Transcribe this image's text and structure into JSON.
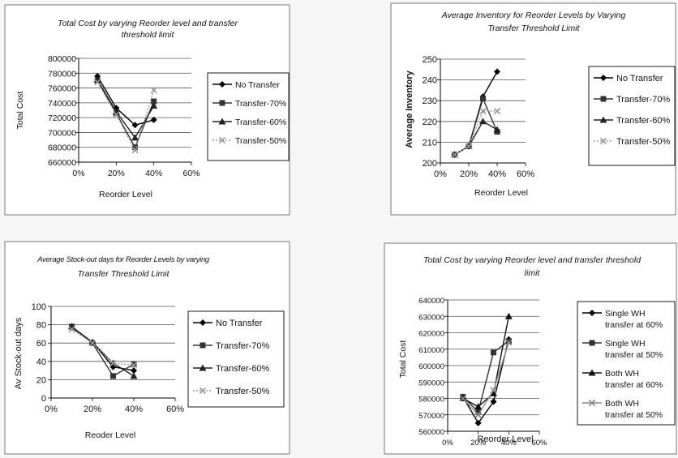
{
  "chart_data": [
    {
      "type": "line",
      "title": "Total Cost by varying Reorder level and transfer threshold limit",
      "title_lines": [
        "Total Cost by varying Reorder level and transfer",
        "threshold limit"
      ],
      "xlabel": "Reorder Level",
      "ylabel": "Total Cost",
      "xlim": [
        0,
        60
      ],
      "ylim": [
        660000,
        800000
      ],
      "x_ticks": [
        "0%",
        "20%",
        "40%",
        "60%"
      ],
      "y_ticks": [
        "660000",
        "680000",
        "700000",
        "720000",
        "740000",
        "760000",
        "780000",
        "800000"
      ],
      "grid": true,
      "legend_position": "right",
      "x": [
        10,
        20,
        30,
        40
      ],
      "series": [
        {
          "name": "No Transfer",
          "values": [
            776000,
            733000,
            710000,
            717000
          ],
          "marker": "diamond",
          "color": "#000000",
          "dash": ""
        },
        {
          "name": "Transfer-70%",
          "values": [
            770000,
            726000,
            680000,
            742000
          ],
          "marker": "square",
          "color": "#333333",
          "dash": ""
        },
        {
          "name": "Transfer-60%",
          "values": [
            771000,
            728000,
            693000,
            736000
          ],
          "marker": "triangle",
          "color": "#222222",
          "dash": ""
        },
        {
          "name": "Transfer-50%",
          "values": [
            768000,
            724000,
            676000,
            757000
          ],
          "marker": "x",
          "color": "#9a9a9a",
          "dash": "2,2"
        }
      ]
    },
    {
      "type": "line",
      "title": "Average Inventory for Reorder Levels by Varying Transfer Threshold Limit",
      "title_lines": [
        "Average Inventory for Reorder Levels by Varying",
        "Transfer Threshold Limit"
      ],
      "xlabel": "Reorder Level",
      "ylabel": "Average Inventory",
      "xlim": [
        0,
        60
      ],
      "ylim": [
        200,
        250
      ],
      "x_ticks": [
        "0%",
        "20%",
        "40%",
        "60%"
      ],
      "y_ticks": [
        "200",
        "210",
        "220",
        "230",
        "240",
        "250"
      ],
      "grid": true,
      "legend_position": "right",
      "x": [
        10,
        20,
        30,
        40
      ],
      "series": [
        {
          "name": "No Transfer",
          "values": [
            204,
            208,
            232,
            244
          ],
          "marker": "diamond",
          "color": "#000000",
          "dash": ""
        },
        {
          "name": "Transfer-70%",
          "values": [
            204,
            208,
            231,
            215
          ],
          "marker": "square",
          "color": "#333333",
          "dash": ""
        },
        {
          "name": "Transfer-60%",
          "values": [
            204,
            208,
            220,
            216
          ],
          "marker": "triangle",
          "color": "#222222",
          "dash": ""
        },
        {
          "name": "Transfer-50%",
          "values": [
            204,
            208,
            225,
            225
          ],
          "marker": "x",
          "color": "#9a9a9a",
          "dash": "2,2"
        }
      ]
    },
    {
      "type": "line",
      "title": "Average Stock-out days for Reorder Levels by varying Transfer Threshold Limit",
      "title_lines": [
        "Average Stock-out days for Reorder Levels by varying",
        "Transfer Threshold Limit"
      ],
      "xlabel": "Reoder Level",
      "ylabel": "Av Stock-out days",
      "xlim": [
        0,
        60
      ],
      "ylim": [
        0,
        100
      ],
      "x_ticks": [
        "0%",
        "20%",
        "40%",
        "60%"
      ],
      "y_ticks": [
        "0",
        "20",
        "40",
        "60",
        "80",
        "100"
      ],
      "grid": true,
      "legend_position": "right",
      "x": [
        10,
        20,
        30,
        40
      ],
      "series": [
        {
          "name": "No Transfer",
          "values": [
            77,
            61,
            34,
            30
          ],
          "marker": "diamond",
          "color": "#000000",
          "dash": ""
        },
        {
          "name": "Transfer-70%",
          "values": [
            78,
            60,
            24,
            37
          ],
          "marker": "square",
          "color": "#333333",
          "dash": ""
        },
        {
          "name": "Transfer-60%",
          "values": [
            78,
            61,
            38,
            24
          ],
          "marker": "triangle",
          "color": "#222222",
          "dash": ""
        },
        {
          "name": "Transfer-50%",
          "values": [
            75,
            60,
            38,
            36
          ],
          "marker": "x",
          "color": "#9a9a9a",
          "dash": "2,2"
        }
      ]
    },
    {
      "type": "line",
      "title": "Total Cost by varying Reorder level and transfer threshold limit",
      "title_lines": [
        "Total Cost by varying Reorder level and transfer threshold",
        "limit"
      ],
      "xlabel": "Reorder Level",
      "ylabel": "Total Cost",
      "xlim": [
        0,
        60
      ],
      "ylim": [
        560000,
        640000
      ],
      "x_ticks": [
        "0%",
        "20%",
        "40%",
        "60%"
      ],
      "y_ticks": [
        "560000",
        "570000",
        "580000",
        "590000",
        "600000",
        "610000",
        "620000",
        "630000",
        "640000"
      ],
      "grid": true,
      "legend_position": "right",
      "x": [
        10,
        20,
        30,
        40
      ],
      "series": [
        {
          "name": "Single WH transfer at 60%",
          "legend_lines": [
            "Single WH",
            "transfer at 60%"
          ],
          "values": [
            581000,
            565000,
            578000,
            616000
          ],
          "marker": "diamond",
          "color": "#000000",
          "dash": ""
        },
        {
          "name": "Single WH transfer at 50%",
          "legend_lines": [
            "Single WH",
            "transfer at 50%"
          ],
          "values": [
            581000,
            572000,
            608000,
            615000
          ],
          "marker": "square",
          "color": "#333333",
          "dash": ""
        },
        {
          "name": "Both WH transfer at 60%",
          "legend_lines": [
            "Both WH",
            "transfer at 60%"
          ],
          "values": [
            580000,
            575000,
            583000,
            630000
          ],
          "marker": "triangle",
          "color": "#111111",
          "dash": ""
        },
        {
          "name": "Both WH transfer at 50%",
          "legend_lines": [
            "Both WH",
            "transfer at 50%"
          ],
          "values": [
            580000,
            570000,
            585000,
            614000
          ],
          "marker": "x",
          "color": "#8a8a8a",
          "dash": ""
        }
      ]
    }
  ]
}
